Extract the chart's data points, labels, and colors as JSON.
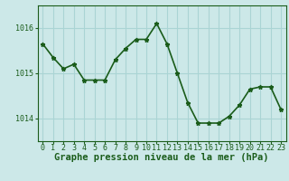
{
  "x": [
    0,
    1,
    2,
    3,
    4,
    5,
    6,
    7,
    8,
    9,
    10,
    11,
    12,
    13,
    14,
    15,
    16,
    17,
    18,
    19,
    20,
    21,
    22,
    23
  ],
  "y": [
    1015.65,
    1015.35,
    1015.1,
    1015.2,
    1014.85,
    1014.85,
    1014.85,
    1015.3,
    1015.55,
    1015.75,
    1015.75,
    1016.1,
    1015.65,
    1015.0,
    1014.35,
    1013.9,
    1013.9,
    1013.9,
    1014.05,
    1014.3,
    1014.65,
    1014.7,
    1014.7,
    1014.2
  ],
  "line_color": "#1a5c1a",
  "marker": "*",
  "marker_size": 3.5,
  "bg_color": "#cce8e8",
  "grid_color": "#aad4d4",
  "xlabel": "Graphe pression niveau de la mer (hPa)",
  "xlabel_fontsize": 7.5,
  "ylabel_ticks": [
    1014,
    1015,
    1016
  ],
  "xlim": [
    -0.5,
    23.5
  ],
  "ylim": [
    1013.5,
    1016.5
  ],
  "xtick_labels": [
    "0",
    "1",
    "2",
    "3",
    "4",
    "5",
    "6",
    "7",
    "8",
    "9",
    "10",
    "11",
    "12",
    "13",
    "14",
    "15",
    "16",
    "17",
    "18",
    "19",
    "20",
    "21",
    "22",
    "23"
  ],
  "tick_fontsize": 6.0,
  "line_width": 1.2
}
